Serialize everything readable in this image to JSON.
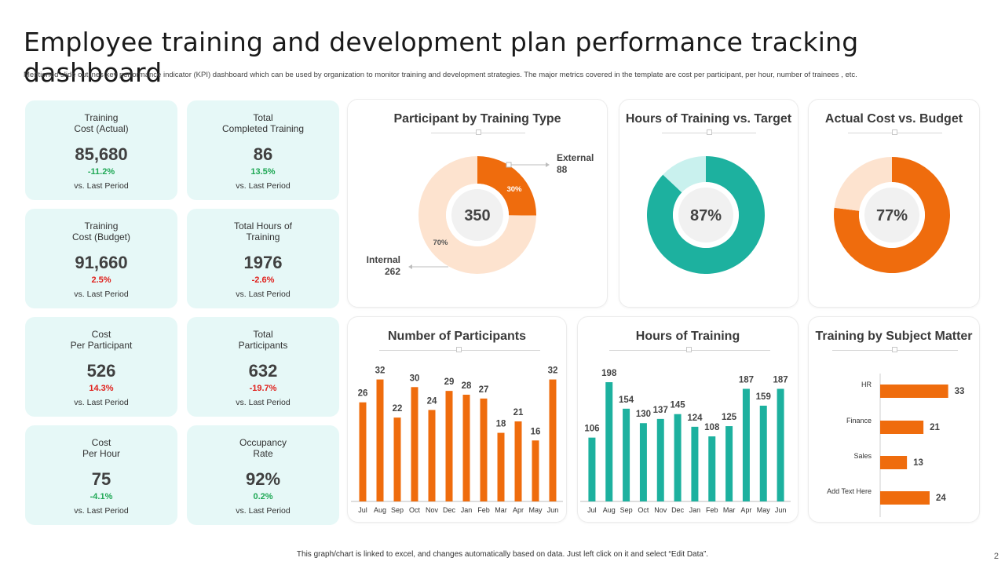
{
  "header": {
    "title": "Employee training and development plan performance tracking dashboard",
    "subtitle": "Mentioned slide outlines key performance indicator (KPI) dashboard which can be used by organization to monitor training and development strategies. The major metrics covered in the template are cost per participant, per hour, number of trainees , etc."
  },
  "kpis": [
    {
      "label_line1": "Training",
      "label_line2": "Cost (Actual)",
      "value": "85,680",
      "change": "-11.2%",
      "period": "vs. Last Period"
    },
    {
      "label_line1": "Total",
      "label_line2": "Completed Training",
      "value": "86",
      "change": "13.5%",
      "period": "vs. Last Period"
    },
    {
      "label_line1": "Training",
      "label_line2": "Cost (Budget)",
      "value": "91,660",
      "change": "2.5%",
      "period": "vs. Last Period"
    },
    {
      "label_line1": "Total Hours of",
      "label_line2": "Training",
      "value": "1976",
      "change": "-2.6%",
      "period": "vs. Last Period"
    },
    {
      "label_line1": "Cost",
      "label_line2": "Per Participant",
      "value": "526",
      "change": "14.3%",
      "period": "vs. Last Period"
    },
    {
      "label_line1": "Total",
      "label_line2": "Participants",
      "value": "632",
      "change": "-19.7%",
      "period": "vs. Last Period"
    },
    {
      "label_line1": "Cost",
      "label_line2": "Per Hour",
      "value": "75",
      "change": "-4.1%",
      "period": "vs. Last Period"
    },
    {
      "label_line1": "Occupancy",
      "label_line2": "Rate",
      "value": "92%",
      "change": "0.2%",
      "period": "vs. Last Period"
    }
  ],
  "colors": {
    "orange": "#ef6c0d",
    "peach": "#fde3cf",
    "teal": "#1db19f",
    "teal_light": "#c9f1ee",
    "up": "#1fa855",
    "down": "#e0201c"
  },
  "chart_data": [
    {
      "type": "pie",
      "title": "Participant by Training Type",
      "center_label": "350",
      "slices": [
        {
          "name": "External",
          "value": 88,
          "percent_label": "30%",
          "color": "#ef6c0d"
        },
        {
          "name": "Internal",
          "value": 262,
          "percent_label": "70%",
          "color": "#fde3cf"
        }
      ]
    },
    {
      "type": "pie",
      "title": "Hours of Training vs. Target",
      "center_label": "87%",
      "value_percent": 87,
      "colors": [
        "#1db19f",
        "#c9f1ee"
      ]
    },
    {
      "type": "pie",
      "title": "Actual Cost vs. Budget",
      "center_label": "77%",
      "value_percent": 77,
      "colors": [
        "#ef6c0d",
        "#fde3cf"
      ]
    },
    {
      "type": "bar",
      "title": "Number of Participants",
      "categories": [
        "Jul",
        "Aug",
        "Sep",
        "Oct",
        "Nov",
        "Dec",
        "Jan",
        "Feb",
        "Mar",
        "Apr",
        "May",
        "Jun"
      ],
      "values": [
        26,
        32,
        22,
        30,
        24,
        29,
        28,
        27,
        18,
        21,
        16,
        32
      ],
      "ylim": [
        0,
        35
      ],
      "color": "#ef6c0d",
      "grid": false
    },
    {
      "type": "bar",
      "title": "Hours of Training",
      "categories": [
        "Jul",
        "Aug",
        "Sep",
        "Oct",
        "Nov",
        "Dec",
        "Jan",
        "Feb",
        "Mar",
        "Apr",
        "May",
        "Jun"
      ],
      "values": [
        106,
        198,
        154,
        130,
        137,
        145,
        124,
        108,
        125,
        187,
        159,
        187
      ],
      "ylim": [
        0,
        215
      ],
      "color": "#1db19f",
      "grid": false
    },
    {
      "type": "bar",
      "orientation": "horizontal",
      "title": "Training by Subject Matter",
      "categories": [
        "HR",
        "Finance",
        "Sales",
        "Add Text Here"
      ],
      "values": [
        33,
        21,
        13,
        24
      ],
      "xlim": [
        0,
        40
      ],
      "color": "#ef6c0d",
      "grid": false
    }
  ],
  "footer": {
    "note": "This graph/chart is linked to excel, and changes automatically based on data. Just left click on it and select “Edit Data”.",
    "page_number": "2"
  }
}
